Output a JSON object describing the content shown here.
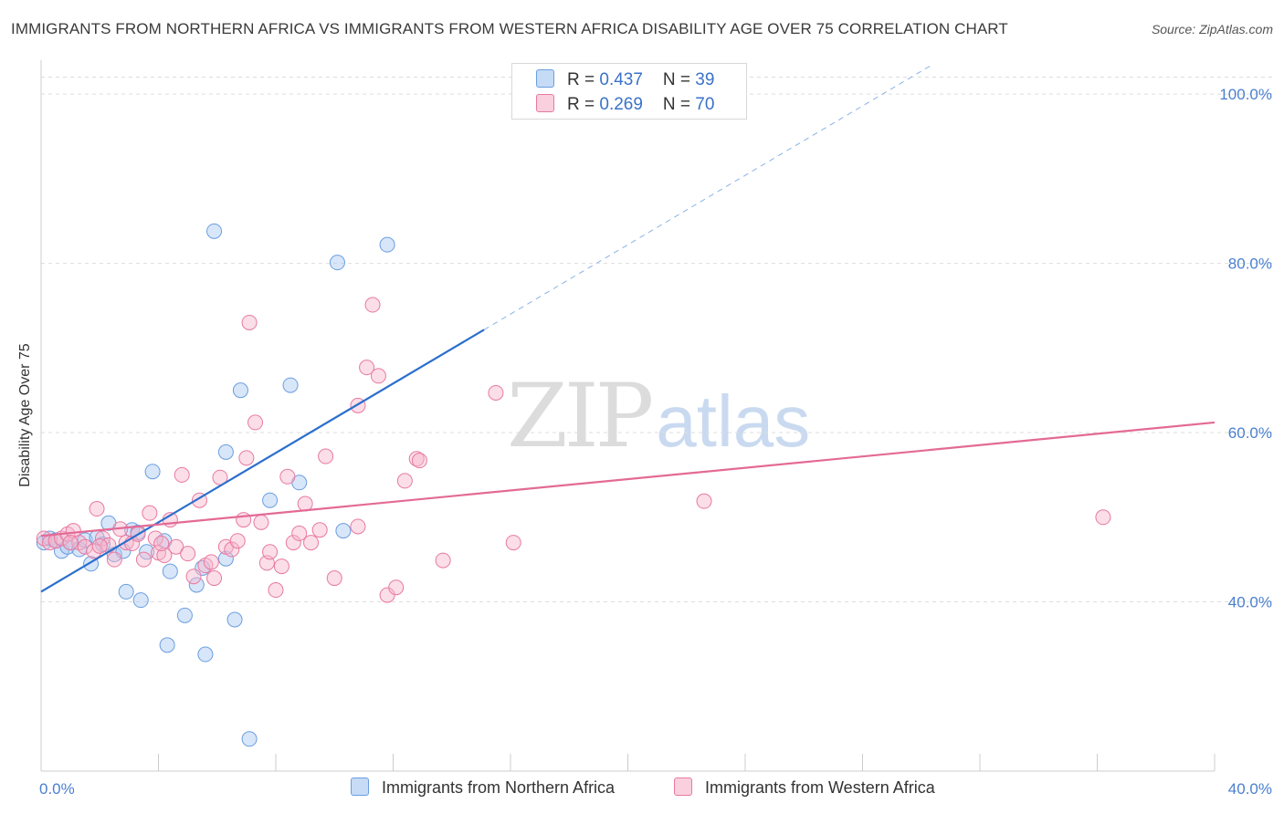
{
  "header": {
    "title": "IMMIGRANTS FROM NORTHERN AFRICA VS IMMIGRANTS FROM WESTERN AFRICA DISABILITY AGE OVER 75 CORRELATION CHART",
    "source": "Source: ZipAtlas.com"
  },
  "watermark": {
    "zip": "ZIP",
    "atlas": "atlas"
  },
  "legend": {
    "rows": [
      {
        "r_label": "R = ",
        "r_value": "0.437",
        "n_label": "N = ",
        "n_value": "39",
        "color": "#a9c8f2"
      },
      {
        "r_label": "R = ",
        "r_value": "0.269",
        "n_label": "N = ",
        "n_value": "70",
        "color": "#f7b6cb"
      }
    ]
  },
  "bottom_legend": {
    "items": [
      {
        "label": "Immigrants from Northern Africa",
        "color": "#a9c8f2"
      },
      {
        "label": "Immigrants from Western Africa",
        "color": "#f7b6cb"
      }
    ]
  },
  "chart_data": {
    "type": "scatter",
    "title": "IMMIGRANTS FROM NORTHERN AFRICA VS IMMIGRANTS FROM WESTERN AFRICA DISABILITY AGE OVER 75 CORRELATION CHART",
    "xlabel": "",
    "ylabel": "Disability Age Over 75",
    "xlim": [
      0,
      40
    ],
    "ylim": [
      20,
      104
    ],
    "x_tick_labels": [
      {
        "value": 0,
        "label": "0.0%"
      },
      {
        "value": 40,
        "label": "40.0%"
      }
    ],
    "y_tick_labels": [
      {
        "value": 40,
        "label": "40.0%"
      },
      {
        "value": 60,
        "label": "60.0%"
      },
      {
        "value": 80,
        "label": "80.0%"
      },
      {
        "value": 100,
        "label": "100.0%"
      }
    ],
    "grid": "horizontal dashed",
    "legend_position": "top-center",
    "series": [
      {
        "name": "Immigrants from Northern Africa",
        "color": "#6a9ee0",
        "fill": "#a9c8f2",
        "points": [
          [
            0.1,
            47.0
          ],
          [
            0.3,
            47.5
          ],
          [
            0.5,
            47.3
          ],
          [
            0.7,
            46.0
          ],
          [
            0.9,
            46.5
          ],
          [
            1.0,
            47.0
          ],
          [
            1.3,
            46.2
          ],
          [
            1.5,
            47.3
          ],
          [
            1.7,
            44.5
          ],
          [
            1.9,
            47.6
          ],
          [
            2.1,
            46.8
          ],
          [
            2.3,
            49.3
          ],
          [
            2.5,
            45.6
          ],
          [
            2.8,
            46.0
          ],
          [
            2.9,
            41.2
          ],
          [
            3.1,
            48.5
          ],
          [
            3.3,
            48.2
          ],
          [
            3.4,
            40.2
          ],
          [
            3.6,
            45.9
          ],
          [
            3.8,
            55.4
          ],
          [
            4.2,
            47.2
          ],
          [
            4.4,
            43.6
          ],
          [
            4.3,
            34.9
          ],
          [
            4.9,
            38.4
          ],
          [
            5.3,
            42.0
          ],
          [
            5.5,
            44.0
          ],
          [
            5.6,
            33.8
          ],
          [
            5.9,
            83.8
          ],
          [
            6.3,
            57.7
          ],
          [
            6.3,
            45.1
          ],
          [
            6.6,
            37.9
          ],
          [
            6.8,
            65.0
          ],
          [
            7.1,
            23.8
          ],
          [
            7.8,
            52.0
          ],
          [
            8.5,
            65.6
          ],
          [
            8.8,
            54.1
          ],
          [
            10.1,
            80.1
          ],
          [
            10.3,
            48.4
          ],
          [
            11.8,
            82.2
          ]
        ],
        "trend": {
          "x": [
            0,
            40
          ],
          "y": [
            41.2,
            123.2
          ],
          "solid_to_x": 15.1
        }
      },
      {
        "name": "Immigrants from Western Africa",
        "color": "#e87aa0",
        "fill": "#f7b6cb",
        "points": [
          [
            0.1,
            47.5
          ],
          [
            0.3,
            47.0
          ],
          [
            0.5,
            47.2
          ],
          [
            0.7,
            47.5
          ],
          [
            0.9,
            48.0
          ],
          [
            1.1,
            48.4
          ],
          [
            1.3,
            47.0
          ],
          [
            1.5,
            46.5
          ],
          [
            1.8,
            46.0
          ],
          [
            1.9,
            51.0
          ],
          [
            2.1,
            47.5
          ],
          [
            2.3,
            46.7
          ],
          [
            2.5,
            45.0
          ],
          [
            2.7,
            48.6
          ],
          [
            2.9,
            47.0
          ],
          [
            3.1,
            46.9
          ],
          [
            3.3,
            48.0
          ],
          [
            3.5,
            45.0
          ],
          [
            3.7,
            50.5
          ],
          [
            3.9,
            47.5
          ],
          [
            4.0,
            45.8
          ],
          [
            4.2,
            45.5
          ],
          [
            4.4,
            49.7
          ],
          [
            4.6,
            46.5
          ],
          [
            4.8,
            55.0
          ],
          [
            5.0,
            45.7
          ],
          [
            5.2,
            43.0
          ],
          [
            5.4,
            52.0
          ],
          [
            5.6,
            44.3
          ],
          [
            5.8,
            44.7
          ],
          [
            5.9,
            42.8
          ],
          [
            6.1,
            54.7
          ],
          [
            6.3,
            46.5
          ],
          [
            6.5,
            46.2
          ],
          [
            6.7,
            47.2
          ],
          [
            6.9,
            49.7
          ],
          [
            7.0,
            57.0
          ],
          [
            7.1,
            73.0
          ],
          [
            7.3,
            61.2
          ],
          [
            7.5,
            49.4
          ],
          [
            7.7,
            44.6
          ],
          [
            7.8,
            45.9
          ],
          [
            8.0,
            41.4
          ],
          [
            8.2,
            44.2
          ],
          [
            8.4,
            54.8
          ],
          [
            8.6,
            47.0
          ],
          [
            8.8,
            48.1
          ],
          [
            9.0,
            51.6
          ],
          [
            9.2,
            47.0
          ],
          [
            9.5,
            48.5
          ],
          [
            9.7,
            57.2
          ],
          [
            10.0,
            42.8
          ],
          [
            10.8,
            63.2
          ],
          [
            10.8,
            48.9
          ],
          [
            11.1,
            67.7
          ],
          [
            11.3,
            75.1
          ],
          [
            11.5,
            66.7
          ],
          [
            11.8,
            40.8
          ],
          [
            12.1,
            41.7
          ],
          [
            12.4,
            54.3
          ],
          [
            12.8,
            56.9
          ],
          [
            12.9,
            56.7
          ],
          [
            13.7,
            44.9
          ],
          [
            15.5,
            64.7
          ],
          [
            16.1,
            47.0
          ],
          [
            22.6,
            51.9
          ],
          [
            36.2,
            50.0
          ],
          [
            1.0,
            47.0
          ],
          [
            2.0,
            46.6
          ],
          [
            4.1,
            46.9
          ]
        ],
        "trend": {
          "x": [
            0,
            40
          ],
          "y": [
            47.8,
            61.2
          ]
        }
      }
    ]
  },
  "colors": {
    "axis_tick_text": "#4a7fcf",
    "gridline": "#dddddd",
    "blue_trend": "#2b6fcd",
    "pink_trend": "#e36a95"
  }
}
